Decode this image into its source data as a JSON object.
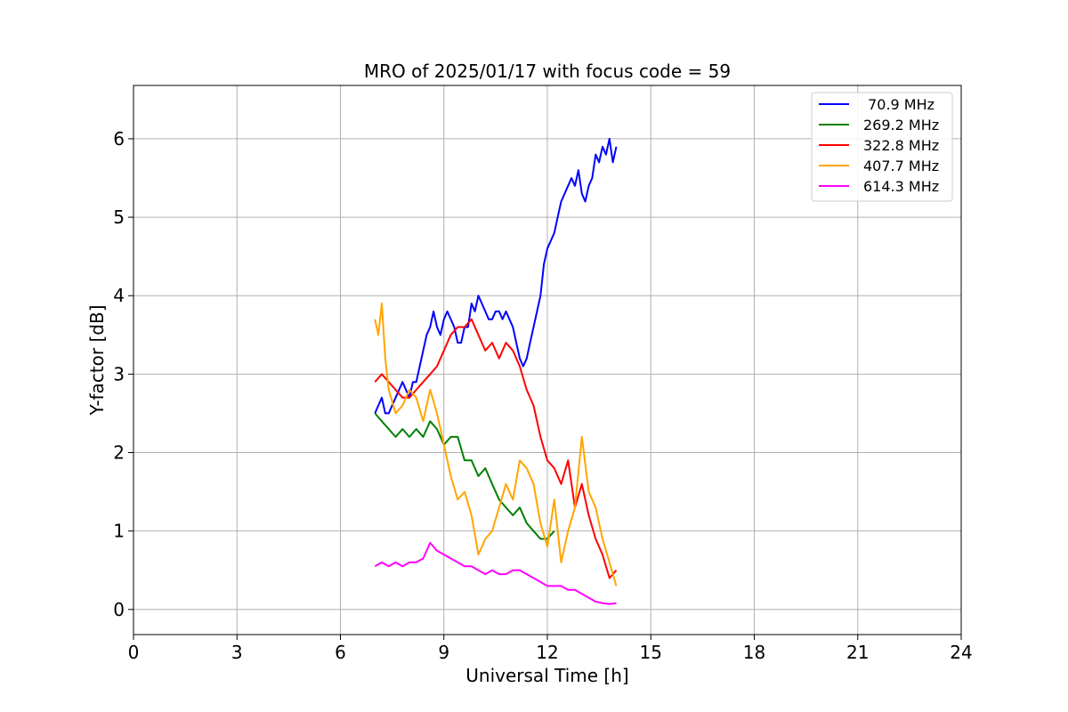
{
  "chart_data": {
    "type": "line",
    "title": "MRO of 2025/01/17 with focus code = 59",
    "xlabel": "Universal Time [h]",
    "ylabel": "Y-factor [dB]",
    "xlim": [
      0,
      24
    ],
    "ylim": [
      -0.32,
      6.68
    ],
    "xticks": [
      0,
      3,
      6,
      9,
      12,
      15,
      18,
      21,
      24
    ],
    "yticks": [
      0,
      1,
      2,
      3,
      4,
      5,
      6
    ],
    "grid": true,
    "legend_position": "top-right",
    "series": [
      {
        "name": " 70.9 MHz",
        "color": "#0000ff",
        "x": [
          7.0,
          7.1,
          7.2,
          7.3,
          7.4,
          7.5,
          7.6,
          7.7,
          7.8,
          7.9,
          8.0,
          8.1,
          8.2,
          8.3,
          8.4,
          8.5,
          8.6,
          8.7,
          8.8,
          8.9,
          9.0,
          9.1,
          9.2,
          9.3,
          9.4,
          9.5,
          9.6,
          9.7,
          9.8,
          9.9,
          10.0,
          10.1,
          10.2,
          10.3,
          10.4,
          10.5,
          10.6,
          10.7,
          10.8,
          10.9,
          11.0,
          11.1,
          11.2,
          11.3,
          11.4,
          11.5,
          11.6,
          11.7,
          11.8,
          11.9,
          12.0,
          12.1,
          12.2,
          12.3,
          12.4,
          12.5,
          12.6,
          12.7,
          12.8,
          12.9,
          13.0,
          13.1,
          13.2,
          13.3,
          13.4,
          13.5,
          13.6,
          13.7,
          13.8,
          13.9,
          14.0
        ],
        "y": [
          2.5,
          2.6,
          2.7,
          2.5,
          2.5,
          2.6,
          2.7,
          2.8,
          2.9,
          2.8,
          2.7,
          2.9,
          2.9,
          3.1,
          3.3,
          3.5,
          3.6,
          3.8,
          3.6,
          3.5,
          3.7,
          3.8,
          3.7,
          3.6,
          3.4,
          3.4,
          3.6,
          3.6,
          3.9,
          3.8,
          4.0,
          3.9,
          3.8,
          3.7,
          3.7,
          3.8,
          3.8,
          3.7,
          3.8,
          3.7,
          3.6,
          3.4,
          3.2,
          3.1,
          3.2,
          3.4,
          3.6,
          3.8,
          4.0,
          4.4,
          4.6,
          4.7,
          4.8,
          5.0,
          5.2,
          5.3,
          5.4,
          5.5,
          5.4,
          5.6,
          5.3,
          5.2,
          5.4,
          5.5,
          5.8,
          5.7,
          5.9,
          5.8,
          6.0,
          5.7,
          5.9
        ]
      },
      {
        "name": "269.2 MHz",
        "color": "#008000",
        "x": [
          7.0,
          7.2,
          7.4,
          7.6,
          7.8,
          8.0,
          8.2,
          8.4,
          8.6,
          8.8,
          9.0,
          9.2,
          9.4,
          9.6,
          9.8,
          10.0,
          10.2,
          10.4,
          10.6,
          10.8,
          11.0,
          11.2,
          11.4,
          11.6,
          11.8,
          12.0,
          12.2
        ],
        "y": [
          2.5,
          2.4,
          2.3,
          2.2,
          2.3,
          2.2,
          2.3,
          2.2,
          2.4,
          2.3,
          2.1,
          2.2,
          2.2,
          1.9,
          1.9,
          1.7,
          1.8,
          1.6,
          1.4,
          1.3,
          1.2,
          1.3,
          1.1,
          1.0,
          0.9,
          0.9,
          1.0
        ]
      },
      {
        "name": "322.8 MHz",
        "color": "#ff0000",
        "x": [
          7.0,
          7.2,
          7.4,
          7.6,
          7.8,
          8.0,
          8.2,
          8.4,
          8.6,
          8.8,
          9.0,
          9.2,
          9.4,
          9.6,
          9.8,
          10.0,
          10.2,
          10.4,
          10.6,
          10.8,
          11.0,
          11.2,
          11.4,
          11.6,
          11.8,
          12.0,
          12.2,
          12.4,
          12.6,
          12.8,
          13.0,
          13.2,
          13.4,
          13.6,
          13.8,
          14.0
        ],
        "y": [
          2.9,
          3.0,
          2.9,
          2.8,
          2.7,
          2.7,
          2.8,
          2.9,
          3.0,
          3.1,
          3.3,
          3.5,
          3.6,
          3.6,
          3.7,
          3.5,
          3.3,
          3.4,
          3.2,
          3.4,
          3.3,
          3.1,
          2.8,
          2.6,
          2.2,
          1.9,
          1.8,
          1.6,
          1.9,
          1.3,
          1.6,
          1.2,
          0.9,
          0.7,
          0.4,
          0.5
        ]
      },
      {
        "name": "407.7 MHz",
        "color": "#ffa500",
        "x": [
          7.0,
          7.1,
          7.2,
          7.3,
          7.4,
          7.6,
          7.8,
          8.0,
          8.2,
          8.4,
          8.6,
          8.8,
          9.0,
          9.2,
          9.4,
          9.6,
          9.8,
          10.0,
          10.2,
          10.4,
          10.6,
          10.8,
          11.0,
          11.2,
          11.4,
          11.6,
          11.8,
          12.0,
          12.2,
          12.4,
          12.6,
          12.8,
          13.0,
          13.2,
          13.4,
          13.6,
          13.8,
          14.0
        ],
        "y": [
          3.7,
          3.5,
          3.9,
          3.2,
          2.8,
          2.5,
          2.6,
          2.8,
          2.7,
          2.4,
          2.8,
          2.5,
          2.1,
          1.7,
          1.4,
          1.5,
          1.2,
          0.7,
          0.9,
          1.0,
          1.3,
          1.6,
          1.4,
          1.9,
          1.8,
          1.6,
          1.1,
          0.8,
          1.4,
          0.6,
          1.0,
          1.3,
          2.2,
          1.5,
          1.3,
          0.9,
          0.6,
          0.3
        ]
      },
      {
        "name": "614.3 MHz",
        "color": "#ff00ff",
        "x": [
          7.0,
          7.2,
          7.4,
          7.6,
          7.8,
          8.0,
          8.2,
          8.4,
          8.6,
          8.8,
          9.0,
          9.2,
          9.4,
          9.6,
          9.8,
          10.0,
          10.2,
          10.4,
          10.6,
          10.8,
          11.0,
          11.2,
          11.4,
          11.6,
          11.8,
          12.0,
          12.2,
          12.4,
          12.6,
          12.8,
          13.0,
          13.2,
          13.4,
          13.6,
          13.8,
          14.0
        ],
        "y": [
          0.55,
          0.6,
          0.55,
          0.6,
          0.55,
          0.6,
          0.6,
          0.65,
          0.85,
          0.75,
          0.7,
          0.65,
          0.6,
          0.55,
          0.55,
          0.5,
          0.45,
          0.5,
          0.45,
          0.45,
          0.5,
          0.5,
          0.45,
          0.4,
          0.35,
          0.3,
          0.3,
          0.3,
          0.25,
          0.25,
          0.2,
          0.15,
          0.1,
          0.08,
          0.07,
          0.08
        ]
      }
    ]
  }
}
